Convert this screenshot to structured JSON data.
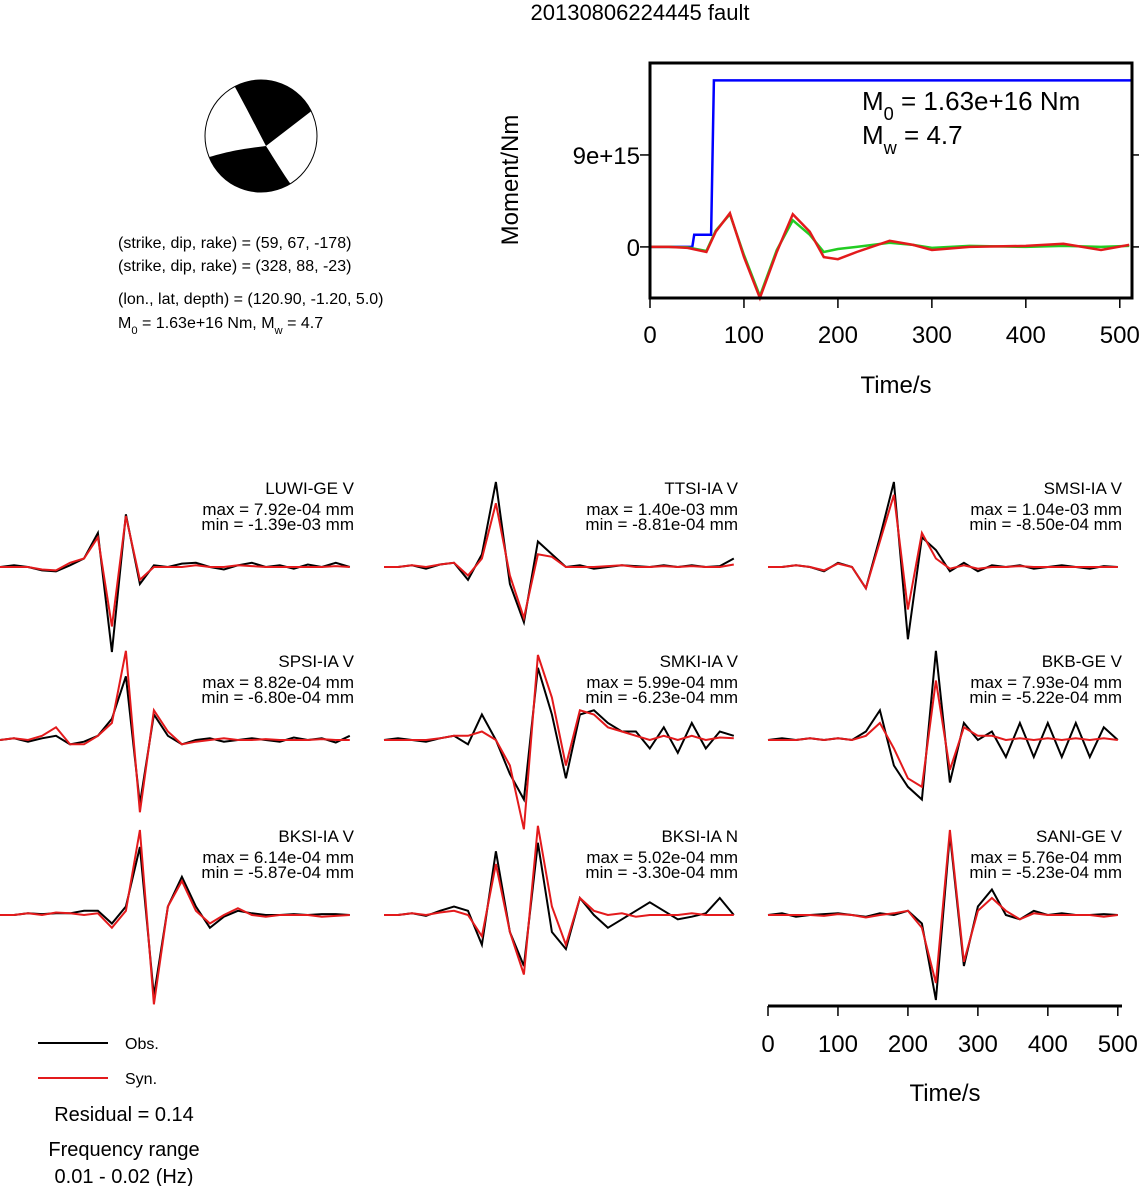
{
  "title": "20130806224445 fault",
  "mechanism": {
    "lines": [
      "(strike, dip, rake) = (59, 67, -178)",
      "(strike, dip, rake) = (328, 88, -23)",
      "(lon., lat, depth) = (120.90, -1.20, 5.0)"
    ],
    "moment_line": [
      "M",
      "0",
      " = 1.63e+16 Nm, M",
      "w",
      " = 4.7"
    ]
  },
  "chart_data": [
    {
      "type": "line",
      "xlabel": "Time/s",
      "ylabel": "Moment/Nm",
      "xlim": [
        0,
        513
      ],
      "ylim": [
        -5000000000000000.0,
        1.8e+16
      ],
      "xticks": [
        0,
        100,
        200,
        300,
        400,
        500
      ],
      "yticks": [
        0,
        {
          "value": 9000000000000000.0,
          "label": "9e+15"
        }
      ],
      "annotations": [
        [
          "M",
          "0",
          " = 1.63e+16 Nm"
        ],
        [
          "M",
          "w",
          " = 4.7"
        ]
      ],
      "series": [
        {
          "color": "#0000ff",
          "x": [
            0,
            45,
            47,
            65,
            68,
            513
          ],
          "values": [
            0,
            0,
            1200000000000000.0,
            1200000000000000.0,
            1.63e+16,
            1.63e+16
          ]
        },
        {
          "color": "#22cc22",
          "x": [
            0,
            20,
            40,
            60,
            70,
            85,
            100,
            117,
            135,
            152,
            170,
            185,
            200,
            220,
            255,
            280,
            300,
            340,
            400,
            440,
            480,
            510
          ],
          "values": [
            0,
            0,
            -50000000000000.0,
            -400000000000000.0,
            1600000000000000.0,
            3200000000000000.0,
            -800000000000000.0,
            -4800000000000000.0,
            -300000000000000.0,
            2600000000000000.0,
            1200000000000000.0,
            -500000000000000.0,
            -200000000000000.0,
            0,
            400000000000000.0,
            200000000000000.0,
            -100000000000000.0,
            100000000000000.0,
            0,
            100000000000000.0,
            0,
            100000000000000.0
          ]
        },
        {
          "color": "#e31a1c",
          "x": [
            0,
            20,
            40,
            60,
            70,
            85,
            100,
            117,
            135,
            152,
            170,
            185,
            200,
            220,
            255,
            280,
            300,
            340,
            400,
            440,
            480,
            510
          ],
          "values": [
            0,
            0,
            -100000000000000.0,
            -500000000000000.0,
            1500000000000000.0,
            3300000000000000.0,
            -1000000000000000.0,
            -5000000000000000.0,
            -500000000000000.0,
            3200000000000000.0,
            1500000000000000.0,
            -1000000000000000.0,
            -1200000000000000.0,
            -500000000000000.0,
            600000000000000.0,
            200000000000000.0,
            -300000000000000.0,
            0,
            100000000000000.0,
            300000000000000.0,
            -300000000000000.0,
            200000000000000.0
          ]
        }
      ]
    },
    {
      "type": "waveforms",
      "xlabel": "Time/s",
      "xlim": [
        0,
        506
      ],
      "xticks": [
        0,
        100,
        200,
        300,
        400,
        500
      ],
      "x": [
        0,
        20,
        40,
        60,
        80,
        100,
        120,
        140,
        160,
        180,
        200,
        220,
        240,
        260,
        280,
        300,
        320,
        340,
        360,
        380,
        400,
        420,
        440,
        460,
        480,
        500
      ],
      "legend": [
        {
          "name": "Obs.",
          "color": "#000000"
        },
        {
          "name": "Syn.",
          "color": "#e31a1c"
        }
      ],
      "panels": [
        {
          "station": "LUWI-GE V",
          "max": "max = 7.92e-04 mm",
          "min": "min = -1.39e-03 mm",
          "obs": [
            0,
            0.02,
            0,
            -0.04,
            -0.05,
            0.02,
            0.1,
            0.4,
            -1.0,
            0.62,
            -0.2,
            0.02,
            0,
            0.04,
            0.05,
            0,
            -0.03,
            0.02,
            0.05,
            0,
            0.02,
            -0.02,
            0.03,
            0,
            0.05,
            0
          ],
          "syn": [
            0,
            0,
            0,
            -0.03,
            -0.04,
            0.05,
            0.1,
            0.35,
            -0.7,
            0.6,
            -0.15,
            0,
            0,
            0,
            0.02,
            0,
            0,
            0.02,
            0.01,
            0,
            0,
            0,
            0,
            0,
            0.01,
            0
          ]
        },
        {
          "station": "TTSI-IA V",
          "max": "max = 1.40e-03 mm",
          "min": "min = -8.81e-04 mm",
          "obs": [
            0,
            0,
            0.02,
            -0.02,
            0.03,
            0.05,
            -0.15,
            0.15,
            1.0,
            -0.2,
            -0.65,
            0.3,
            0.15,
            0,
            0.02,
            -0.02,
            0,
            0.02,
            0.01,
            0,
            0.02,
            0,
            0.02,
            0,
            0.01,
            0.1
          ],
          "syn": [
            0,
            0,
            0.02,
            0,
            0.03,
            0.05,
            -0.1,
            0.1,
            0.75,
            -0.1,
            -0.6,
            0.15,
            0.12,
            0,
            0,
            0,
            0.01,
            0.02,
            0,
            0,
            0.01,
            0,
            0.01,
            0,
            0,
            0.03
          ]
        },
        {
          "station": "SMSI-IA V",
          "max": "max = 1.04e-03 mm",
          "min": "min = -8.50e-04 mm",
          "obs": [
            0,
            0,
            0.02,
            0,
            -0.05,
            0.05,
            0,
            -0.25,
            0.35,
            1.0,
            -0.85,
            0.35,
            0.2,
            -0.05,
            0.05,
            -0.05,
            0.02,
            0,
            0.02,
            -0.02,
            0,
            0.02,
            0,
            -0.02,
            0.01,
            0
          ],
          "syn": [
            0,
            0,
            0.02,
            0,
            -0.04,
            0.04,
            0,
            -0.25,
            0.3,
            0.85,
            -0.5,
            0.4,
            0.1,
            -0.02,
            0.02,
            -0.02,
            0,
            0,
            0.01,
            0,
            0,
            0,
            0,
            0,
            0,
            0
          ]
        },
        {
          "station": "SPSI-IA V",
          "max": "max = 8.82e-04 mm",
          "min": "min = -6.80e-04 mm",
          "obs": [
            0,
            0.02,
            -0.02,
            0.02,
            0.05,
            -0.05,
            -0.02,
            0.05,
            0.25,
            0.75,
            -0.75,
            0.3,
            0.05,
            -0.05,
            0,
            0.02,
            -0.02,
            0,
            0.02,
            0,
            -0.02,
            0.03,
            0,
            0.02,
            -0.03,
            0.05
          ],
          "syn": [
            0,
            0.02,
            0,
            0.05,
            0.15,
            -0.05,
            -0.05,
            0.05,
            0.2,
            1.05,
            -0.85,
            0.35,
            0.1,
            -0.05,
            -0.02,
            0,
            0.02,
            0,
            0,
            0.01,
            0,
            0,
            0,
            0.01,
            0,
            0
          ]
        },
        {
          "station": "SMKI-IA V",
          "max": "max = 5.99e-04 mm",
          "min": "min = -6.23e-04 mm",
          "obs": [
            0,
            0.02,
            0,
            -0.02,
            0.02,
            0.05,
            -0.05,
            0.3,
            0,
            -0.4,
            -0.7,
            0.85,
            0.3,
            -0.45,
            0.3,
            0.35,
            0.2,
            0.1,
            0.1,
            -0.1,
            0.15,
            -0.15,
            0.2,
            -0.1,
            0.1,
            0.05
          ],
          "syn": [
            0,
            0,
            0,
            0,
            0.02,
            0.05,
            0.05,
            0.1,
            0,
            -0.3,
            -1.05,
            1.0,
            0.5,
            -0.3,
            0.35,
            0.3,
            0.15,
            0.1,
            0.05,
            0,
            0.05,
            0,
            0.05,
            0,
            0.03,
            0.02
          ]
        },
        {
          "station": "BKB-GE V",
          "max": "max = 7.93e-04 mm",
          "min": "min = -5.22e-04 mm",
          "obs": [
            0,
            0.02,
            0,
            0.02,
            0,
            0.02,
            0,
            0.1,
            0.35,
            -0.3,
            -0.55,
            -0.7,
            1.05,
            -0.5,
            0.2,
            0,
            0.1,
            -0.2,
            0.2,
            -0.2,
            0.2,
            -0.2,
            0.2,
            -0.2,
            0.15,
            0
          ],
          "syn": [
            0,
            0,
            0,
            0.02,
            0,
            0.02,
            0,
            0.05,
            0.2,
            -0.1,
            -0.45,
            -0.55,
            0.7,
            -0.35,
            0.15,
            0.05,
            0.05,
            0,
            0.02,
            0,
            0.02,
            0,
            0.02,
            0,
            0.02,
            0
          ]
        },
        {
          "station": "BKSI-IA V",
          "max": "max = 6.14e-04 mm",
          "min": "min = -5.87e-04 mm",
          "obs": [
            0,
            0,
            0.02,
            0.01,
            0.02,
            0.02,
            0.05,
            0.05,
            -0.1,
            0.1,
            0.8,
            -0.95,
            0.1,
            0.45,
            0.1,
            -0.15,
            -0.02,
            0.05,
            0.02,
            0,
            0,
            0.01,
            0,
            0.01,
            0.01,
            0
          ],
          "syn": [
            0,
            0,
            0.02,
            0,
            0.03,
            0.02,
            0,
            0.02,
            -0.15,
            0.05,
            1.0,
            -1.05,
            0.1,
            0.4,
            0.05,
            -0.1,
            0,
            0.08,
            0,
            -0.02,
            0,
            0,
            0,
            -0.02,
            -0.01,
            0
          ]
        },
        {
          "station": "BKSI-IA N",
          "max": "max = 5.02e-04 mm",
          "min": "min = -3.30e-04 mm",
          "obs": [
            0,
            0,
            0.02,
            -0.01,
            0.05,
            0.1,
            0.05,
            -0.35,
            0.75,
            -0.2,
            -0.6,
            0.85,
            -0.2,
            -0.4,
            0.2,
            0,
            -0.15,
            -0.05,
            0.05,
            0.15,
            0.05,
            -0.05,
            -0.02,
            0.02,
            0.2,
            0
          ],
          "syn": [
            0,
            0,
            0.02,
            0,
            0.03,
            0.05,
            0,
            -0.25,
            0.6,
            -0.2,
            -0.7,
            1.05,
            0.1,
            -0.35,
            0.2,
            0.05,
            0,
            0.02,
            -0.02,
            0,
            0,
            0,
            0.02,
            0,
            0,
            0
          ]
        },
        {
          "station": "SANI-GE V",
          "max": "max = 5.76e-04 mm",
          "min": "min = -5.23e-04 mm",
          "obs": [
            0,
            0.02,
            -0.02,
            0,
            0.01,
            0.02,
            0,
            -0.02,
            0.02,
            0,
            0.05,
            -0.1,
            -1.0,
            0.95,
            -0.6,
            0.1,
            0.3,
            0,
            -0.05,
            0.05,
            0,
            0.02,
            0,
            0,
            0.01,
            0
          ],
          "syn": [
            0,
            0,
            0,
            0,
            -0.01,
            0.01,
            0,
            -0.03,
            0,
            0.02,
            0.05,
            -0.15,
            -0.8,
            1.0,
            -0.55,
            0.05,
            0.2,
            0.05,
            -0.05,
            0.02,
            0,
            0,
            0,
            0,
            -0.02,
            0
          ]
        }
      ]
    }
  ],
  "notes": [
    "Residual = 0.14",
    "Frequency range",
    "0.01 - 0.02 (Hz)"
  ]
}
